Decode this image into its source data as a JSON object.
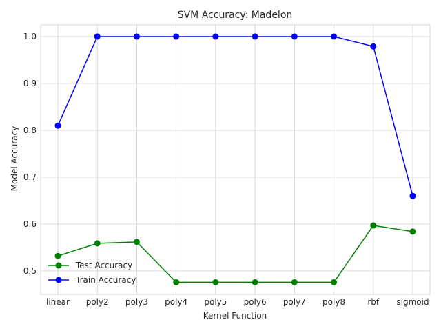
{
  "chart_data": {
    "type": "line",
    "title": "SVM Accuracy: Madelon",
    "xlabel": "Kernel Function",
    "ylabel": "Model Accuracy",
    "categories": [
      "linear",
      "poly2",
      "poly3",
      "poly4",
      "poly5",
      "poly6",
      "poly7",
      "poly8",
      "rbf",
      "sigmoid"
    ],
    "ylim": [
      0.45,
      1.025
    ],
    "yticks": [
      0.5,
      0.6,
      0.7,
      0.8,
      0.9,
      1.0
    ],
    "ytick_labels": [
      "0.5",
      "0.6",
      "0.7",
      "0.8",
      "0.9",
      "1.0"
    ],
    "grid": true,
    "legend": "lower-left",
    "series": [
      {
        "name": "Test Accuracy",
        "color": "#008000",
        "values": [
          0.532,
          0.559,
          0.562,
          0.476,
          0.476,
          0.476,
          0.476,
          0.476,
          0.597,
          0.584
        ]
      },
      {
        "name": "Train Accuracy",
        "color": "#0000ff",
        "values": [
          0.81,
          1.0,
          1.0,
          1.0,
          1.0,
          1.0,
          1.0,
          1.0,
          0.979,
          0.66
        ]
      }
    ]
  }
}
